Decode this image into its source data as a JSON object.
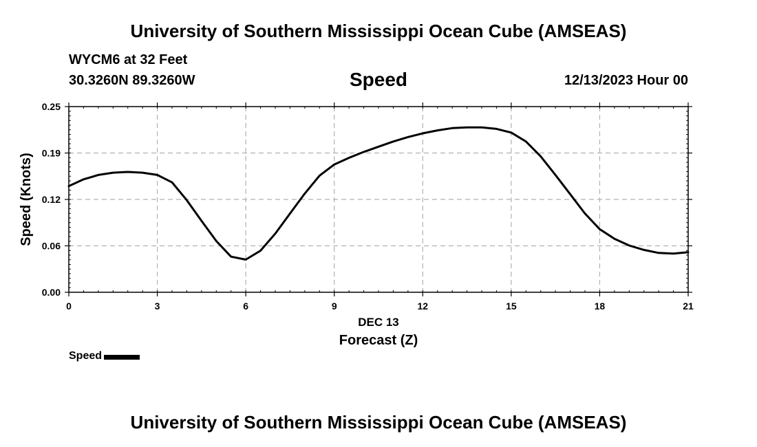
{
  "header": {
    "top_title": "University of Southern Mississippi Ocean Cube (AMSEAS)",
    "station": "WYCM6 at 32 Feet",
    "coords": "30.3260N  89.3260W",
    "run_time": "12/13/2023 Hour 00"
  },
  "footer": {
    "bottom_title": "University of Southern Mississippi Ocean Cube (AMSEAS)"
  },
  "chart_data": {
    "type": "line",
    "title": "Speed",
    "xlabel_line1": "DEC 13",
    "xlabel": "Forecast (Z)",
    "ylabel": "Speed (Knots)",
    "xlim": [
      0,
      21
    ],
    "ylim": [
      0,
      0.25
    ],
    "x_ticks": [
      0,
      3,
      6,
      9,
      12,
      15,
      18,
      21
    ],
    "x_tick_labels": [
      "0",
      "3",
      "6",
      "9",
      "12",
      "15",
      "18",
      "21"
    ],
    "y_ticks": [
      0,
      0.0625,
      0.125,
      0.1875,
      0.25
    ],
    "y_tick_labels": [
      "0.00",
      "0.06",
      "0.12",
      "0.19",
      "0.25"
    ],
    "grid": true,
    "legend_label": "Speed",
    "line_color": "#000000",
    "series": [
      {
        "name": "Speed",
        "x": [
          0,
          0.5,
          1,
          1.5,
          2,
          2.5,
          3,
          3.5,
          4,
          4.5,
          5,
          5.5,
          6,
          6.5,
          7,
          7.5,
          8,
          8.5,
          9,
          9.5,
          10,
          10.5,
          11,
          11.5,
          12,
          12.5,
          13,
          13.5,
          14,
          14.5,
          15,
          15.5,
          16,
          16.5,
          17,
          17.5,
          18,
          18.5,
          19,
          19.5,
          20,
          20.5,
          21
        ],
        "values": [
          0.143,
          0.152,
          0.158,
          0.161,
          0.162,
          0.161,
          0.158,
          0.148,
          0.124,
          0.096,
          0.069,
          0.048,
          0.044,
          0.056,
          0.079,
          0.106,
          0.133,
          0.157,
          0.172,
          0.181,
          0.189,
          0.196,
          0.203,
          0.209,
          0.214,
          0.218,
          0.221,
          0.222,
          0.222,
          0.22,
          0.215,
          0.203,
          0.183,
          0.158,
          0.132,
          0.106,
          0.085,
          0.072,
          0.063,
          0.057,
          0.053,
          0.052,
          0.054
        ]
      }
    ]
  }
}
